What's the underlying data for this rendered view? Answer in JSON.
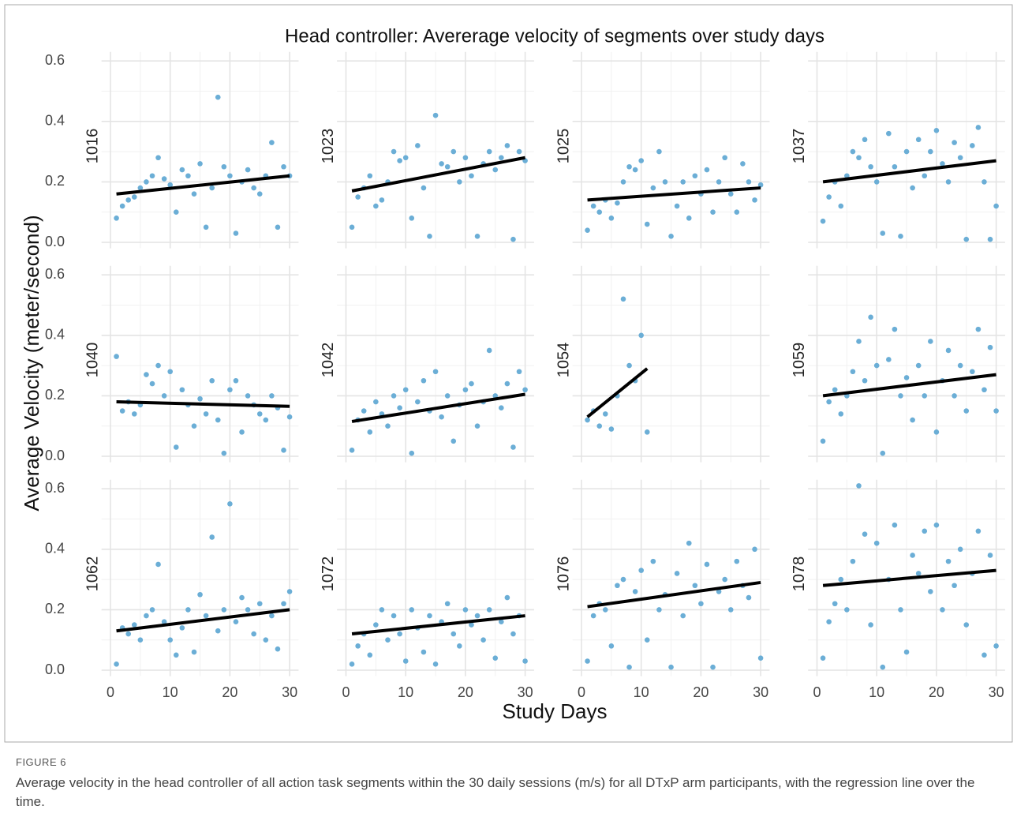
{
  "chart_data": {
    "type": "scatter",
    "title": "Head controller: Avererage velocity of segments over study days",
    "xlabel": "Study Days",
    "ylabel": "Average Velocity (meter/second)",
    "xlim": [
      -1.5,
      31.5
    ],
    "xticks": [
      0,
      10,
      20,
      30
    ],
    "xminor": [
      5,
      15,
      25
    ],
    "ylim": [
      -0.02,
      0.63
    ],
    "yticks": [
      {
        "value": 0,
        "label": "0.0"
      },
      0.2,
      0.4,
      0.6
    ],
    "yminor": [
      0.1,
      0.3,
      0.5
    ],
    "grid": true,
    "color": "#6baed6",
    "line_color": "#000000",
    "panels": [
      {
        "name": "1016",
        "x": [
          1,
          2,
          3,
          4,
          5,
          6,
          7,
          8,
          9,
          10,
          11,
          12,
          13,
          14,
          15,
          16,
          17,
          18,
          19,
          20,
          21,
          22,
          23,
          24,
          25,
          26,
          27,
          28,
          29,
          30
        ],
        "y": [
          0.08,
          0.12,
          0.14,
          0.15,
          0.18,
          0.2,
          0.22,
          0.28,
          0.21,
          0.19,
          0.1,
          0.24,
          0.22,
          0.16,
          0.26,
          0.05,
          0.18,
          0.48,
          0.25,
          0.22,
          0.03,
          0.2,
          0.24,
          0.18,
          0.16,
          0.22,
          0.33,
          0.05,
          0.25,
          0.22
        ],
        "fit_x": [
          1,
          30
        ],
        "fit_y": [
          0.16,
          0.22
        ]
      },
      {
        "name": "1023",
        "x": [
          1,
          2,
          3,
          4,
          5,
          6,
          7,
          8,
          9,
          10,
          11,
          12,
          13,
          14,
          15,
          16,
          17,
          18,
          19,
          20,
          21,
          22,
          23,
          24,
          25,
          26,
          27,
          28,
          29,
          30
        ],
        "y": [
          0.05,
          0.15,
          0.18,
          0.22,
          0.12,
          0.14,
          0.2,
          0.3,
          0.27,
          0.28,
          0.08,
          0.32,
          0.18,
          0.02,
          0.42,
          0.26,
          0.25,
          0.3,
          0.2,
          0.28,
          0.22,
          0.02,
          0.26,
          0.3,
          0.24,
          0.28,
          0.32,
          0.01,
          0.3,
          0.27
        ],
        "fit_x": [
          1,
          30
        ],
        "fit_y": [
          0.17,
          0.28
        ]
      },
      {
        "name": "1025",
        "x": [
          1,
          2,
          3,
          4,
          5,
          6,
          7,
          8,
          9,
          10,
          11,
          12,
          13,
          14,
          15,
          16,
          17,
          18,
          19,
          20,
          21,
          22,
          23,
          24,
          25,
          26,
          27,
          28,
          29,
          30
        ],
        "y": [
          0.04,
          0.12,
          0.1,
          0.14,
          0.08,
          0.13,
          0.2,
          0.25,
          0.24,
          0.27,
          0.06,
          0.18,
          0.3,
          0.2,
          0.02,
          0.12,
          0.2,
          0.08,
          0.22,
          0.16,
          0.24,
          0.1,
          0.2,
          0.28,
          0.16,
          0.1,
          0.26,
          0.2,
          0.14,
          0.19
        ],
        "fit_x": [
          1,
          30
        ],
        "fit_y": [
          0.14,
          0.18
        ]
      },
      {
        "name": "1037",
        "x": [
          1,
          2,
          3,
          4,
          5,
          6,
          7,
          8,
          9,
          10,
          11,
          12,
          13,
          14,
          15,
          16,
          17,
          18,
          19,
          20,
          21,
          22,
          23,
          24,
          25,
          26,
          27,
          28,
          29,
          30
        ],
        "y": [
          0.07,
          0.15,
          0.2,
          0.12,
          0.22,
          0.3,
          0.28,
          0.34,
          0.25,
          0.2,
          0.03,
          0.36,
          0.25,
          0.02,
          0.3,
          0.18,
          0.34,
          0.22,
          0.3,
          0.37,
          0.26,
          0.2,
          0.33,
          0.28,
          0.01,
          0.32,
          0.38,
          0.2,
          0.01,
          0.12
        ],
        "fit_x": [
          1,
          30
        ],
        "fit_y": [
          0.2,
          0.27
        ]
      },
      {
        "name": "1040",
        "x": [
          1,
          2,
          3,
          4,
          5,
          6,
          7,
          8,
          9,
          10,
          11,
          12,
          13,
          14,
          15,
          16,
          17,
          18,
          19,
          20,
          21,
          22,
          23,
          24,
          25,
          26,
          27,
          28,
          29,
          30
        ],
        "y": [
          0.33,
          0.15,
          0.18,
          0.14,
          0.17,
          0.27,
          0.24,
          0.3,
          0.2,
          0.28,
          0.03,
          0.22,
          0.17,
          0.1,
          0.19,
          0.14,
          0.25,
          0.12,
          0.01,
          0.22,
          0.25,
          0.08,
          0.2,
          0.17,
          0.14,
          0.12,
          0.2,
          0.16,
          0.02,
          0.13
        ],
        "fit_x": [
          1,
          30
        ],
        "fit_y": [
          0.18,
          0.165
        ]
      },
      {
        "name": "1042",
        "x": [
          1,
          2,
          3,
          4,
          5,
          6,
          7,
          8,
          9,
          10,
          11,
          12,
          13,
          14,
          15,
          16,
          17,
          18,
          19,
          20,
          21,
          22,
          23,
          24,
          25,
          26,
          27,
          28,
          29,
          30
        ],
        "y": [
          0.02,
          0.12,
          0.15,
          0.08,
          0.18,
          0.14,
          0.1,
          0.2,
          0.16,
          0.22,
          0.01,
          0.18,
          0.25,
          0.15,
          0.28,
          0.13,
          0.2,
          0.05,
          0.17,
          0.22,
          0.24,
          0.1,
          0.18,
          0.35,
          0.2,
          0.16,
          0.24,
          0.03,
          0.28,
          0.22
        ],
        "fit_x": [
          1,
          30
        ],
        "fit_y": [
          0.115,
          0.205
        ]
      },
      {
        "name": "1054",
        "x": [
          1,
          2,
          3,
          4,
          5,
          6,
          7,
          8,
          9,
          10,
          11
        ],
        "y": [
          0.12,
          0.15,
          0.1,
          0.14,
          0.09,
          0.2,
          0.52,
          0.3,
          0.25,
          0.4,
          0.08
        ],
        "fit_x": [
          1,
          11
        ],
        "fit_y": [
          0.13,
          0.29
        ]
      },
      {
        "name": "1059",
        "x": [
          1,
          2,
          3,
          4,
          5,
          6,
          7,
          8,
          9,
          10,
          11,
          12,
          13,
          14,
          15,
          16,
          17,
          18,
          19,
          20,
          21,
          22,
          23,
          24,
          25,
          26,
          27,
          28,
          29,
          30
        ],
        "y": [
          0.05,
          0.18,
          0.22,
          0.14,
          0.2,
          0.28,
          0.38,
          0.25,
          0.46,
          0.3,
          0.01,
          0.32,
          0.42,
          0.2,
          0.26,
          0.12,
          0.3,
          0.2,
          0.38,
          0.08,
          0.25,
          0.35,
          0.2,
          0.3,
          0.15,
          0.28,
          0.42,
          0.22,
          0.36,
          0.15
        ],
        "fit_x": [
          1,
          30
        ],
        "fit_y": [
          0.2,
          0.27
        ]
      },
      {
        "name": "1062",
        "x": [
          1,
          2,
          3,
          4,
          5,
          6,
          7,
          8,
          9,
          10,
          11,
          12,
          13,
          14,
          15,
          16,
          17,
          18,
          19,
          20,
          21,
          22,
          23,
          24,
          25,
          26,
          27,
          28,
          29,
          30
        ],
        "y": [
          0.02,
          0.14,
          0.12,
          0.15,
          0.1,
          0.18,
          0.2,
          0.35,
          0.16,
          0.1,
          0.05,
          0.14,
          0.2,
          0.06,
          0.25,
          0.18,
          0.44,
          0.13,
          0.2,
          0.55,
          0.16,
          0.24,
          0.2,
          0.12,
          0.22,
          0.1,
          0.18,
          0.07,
          0.22,
          0.26
        ],
        "fit_x": [
          1,
          30
        ],
        "fit_y": [
          0.13,
          0.2
        ]
      },
      {
        "name": "1072",
        "x": [
          1,
          2,
          3,
          4,
          5,
          6,
          7,
          8,
          9,
          10,
          11,
          12,
          13,
          14,
          15,
          16,
          17,
          18,
          19,
          20,
          21,
          22,
          23,
          24,
          25,
          26,
          27,
          28,
          29,
          30
        ],
        "y": [
          0.02,
          0.08,
          0.12,
          0.05,
          0.15,
          0.2,
          0.1,
          0.18,
          0.12,
          0.03,
          0.2,
          0.14,
          0.06,
          0.18,
          0.02,
          0.16,
          0.22,
          0.12,
          0.08,
          0.2,
          0.15,
          0.18,
          0.1,
          0.2,
          0.04,
          0.16,
          0.24,
          0.12,
          0.18,
          0.03
        ],
        "fit_x": [
          1,
          30
        ],
        "fit_y": [
          0.12,
          0.18
        ]
      },
      {
        "name": "1076",
        "x": [
          1,
          2,
          3,
          4,
          5,
          6,
          7,
          8,
          9,
          10,
          11,
          12,
          13,
          14,
          15,
          16,
          17,
          18,
          19,
          20,
          21,
          22,
          23,
          24,
          25,
          26,
          27,
          28,
          29,
          30
        ],
        "y": [
          0.03,
          0.18,
          0.22,
          0.2,
          0.08,
          0.28,
          0.3,
          0.01,
          0.26,
          0.33,
          0.1,
          0.36,
          0.2,
          0.25,
          0.01,
          0.32,
          0.18,
          0.42,
          0.28,
          0.22,
          0.35,
          0.01,
          0.26,
          0.3,
          0.2,
          0.36,
          0.28,
          0.24,
          0.4,
          0.04
        ],
        "fit_x": [
          1,
          30
        ],
        "fit_y": [
          0.21,
          0.29
        ]
      },
      {
        "name": "1078",
        "x": [
          1,
          2,
          3,
          4,
          5,
          6,
          7,
          8,
          9,
          10,
          11,
          12,
          13,
          14,
          15,
          16,
          17,
          18,
          19,
          20,
          21,
          22,
          23,
          24,
          25,
          26,
          27,
          28,
          29,
          30
        ],
        "y": [
          0.04,
          0.16,
          0.22,
          0.3,
          0.2,
          0.36,
          0.61,
          0.45,
          0.15,
          0.42,
          0.01,
          0.3,
          0.48,
          0.2,
          0.06,
          0.38,
          0.32,
          0.46,
          0.26,
          0.48,
          0.2,
          0.36,
          0.28,
          0.4,
          0.15,
          0.32,
          0.46,
          0.05,
          0.38,
          0.08
        ],
        "fit_x": [
          1,
          30
        ],
        "fit_y": [
          0.28,
          0.33
        ]
      }
    ]
  },
  "figure_label": "FIGURE 6",
  "caption": "Average velocity in the head controller of all action task segments within the 30 daily sessions (m/s) for all DTxP arm participants, with the regression line over the time."
}
